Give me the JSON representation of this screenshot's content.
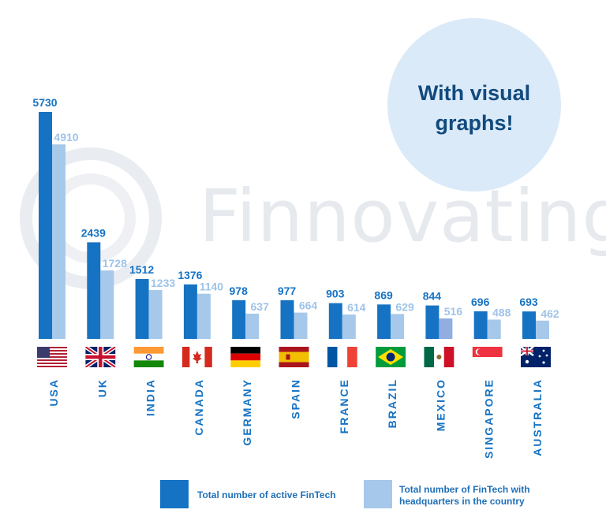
{
  "bubble": {
    "line1": "With visual",
    "line2": "graphs!",
    "color": "#dbeaf8"
  },
  "watermark": {
    "text": "Finnovating"
  },
  "colors": {
    "active": "#1673c3",
    "hq": "#a6c8ea",
    "hq_dark": "#92aee0"
  },
  "legend": {
    "active_label": "Total number of active FinTech",
    "hq_label_line1": "Total number of FinTech with",
    "hq_label_line2": "headquarters in the country"
  },
  "chart_data": {
    "type": "bar",
    "categories": [
      "USA",
      "UK",
      "INDIA",
      "CANADA",
      "GERMANY",
      "SPAIN",
      "FRANCE",
      "BRAZIL",
      "MEXICO",
      "SINGAPORE",
      "AUSTRALIA"
    ],
    "series": [
      {
        "name": "Total number of active FinTech",
        "values": [
          5730,
          2439,
          1512,
          1376,
          978,
          977,
          903,
          869,
          844,
          696,
          693
        ]
      },
      {
        "name": "Total number of FinTech with headquarters in the country",
        "values": [
          4910,
          1728,
          1233,
          1140,
          637,
          664,
          614,
          629,
          516,
          488,
          462
        ]
      }
    ],
    "flags": [
      "us-flag-icon",
      "uk-flag-icon",
      "india-flag-icon",
      "canada-flag-icon",
      "germany-flag-icon",
      "spain-flag-icon",
      "france-flag-icon",
      "brazil-flag-icon",
      "mexico-flag-icon",
      "singapore-flag-icon",
      "australia-flag-icon"
    ],
    "ylim": [
      0,
      5730
    ],
    "grid": false,
    "legend_position": "bottom"
  }
}
